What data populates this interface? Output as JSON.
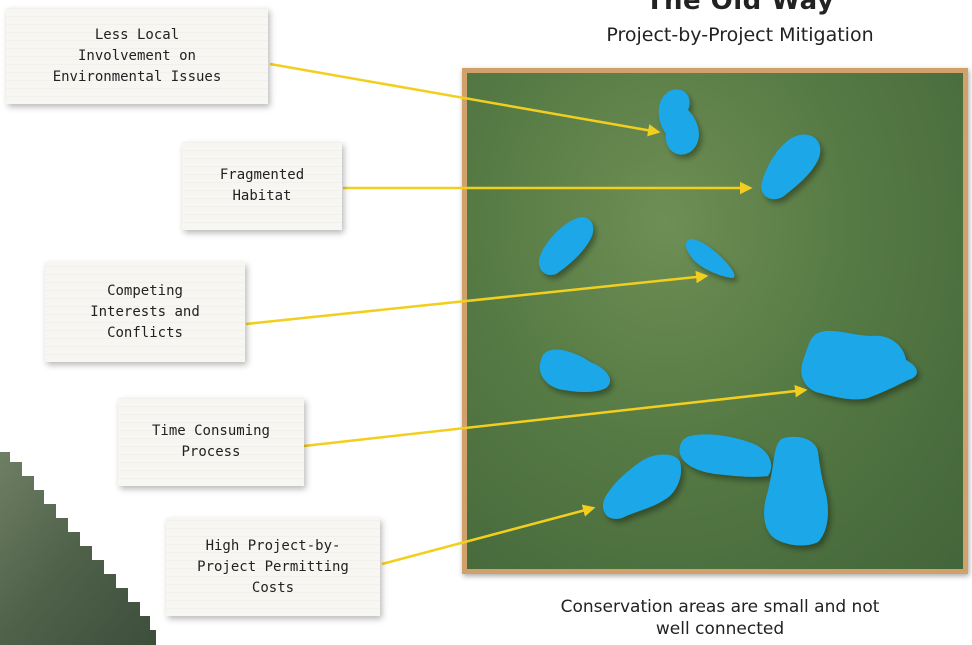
{
  "header": {
    "title": "The Old Way",
    "subtitle": "Project-by-Project Mitigation"
  },
  "caption": "Conservation areas are small and not\nwell connected",
  "labels": [
    {
      "id": "local",
      "text": "Less Local\nInvolvement on\nEnvironmental Issues"
    },
    {
      "id": "fragmented",
      "text": "Fragmented\nHabitat"
    },
    {
      "id": "competing",
      "text": "Competing\nInterests and\nConflicts"
    },
    {
      "id": "time",
      "text": "Time Consuming\nProcess"
    },
    {
      "id": "costs",
      "text": "High Project-by-\nProject Permitting\nCosts"
    }
  ],
  "colors": {
    "arrow": "#f2cf1e",
    "patch": "#1aa8e8",
    "frame": "#d0a16a",
    "land": "#567a44"
  }
}
